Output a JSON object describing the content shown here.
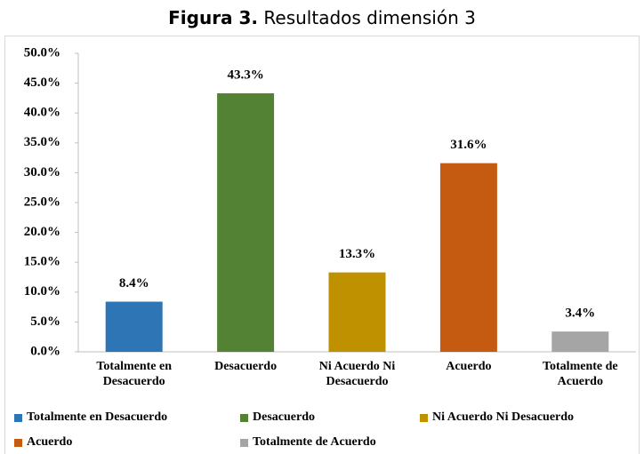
{
  "chart_data": {
    "type": "bar",
    "figure_label": "Figura 3.",
    "title": "Resultados dimensión 3",
    "categories": [
      "Totalmente en Desacuerdo",
      "Desacuerdo",
      "Ni Acuerdo Ni Desacuerdo",
      "Acuerdo",
      "Totalmente de Acuerdo"
    ],
    "values": [
      8.4,
      43.3,
      13.3,
      31.6,
      3.4
    ],
    "value_labels": [
      "8.4%",
      "43.3%",
      "13.3%",
      "31.6%",
      "3.4%"
    ],
    "colors": [
      "#2e75b6",
      "#548235",
      "#bf9000",
      "#c55a11",
      "#a5a5a5"
    ],
    "ylim": [
      0,
      50
    ],
    "yticks": [
      {
        "value": 0,
        "label": "0.0%"
      },
      {
        "value": 5,
        "label": "5.0%"
      },
      {
        "value": 10,
        "label": "10.0%"
      },
      {
        "value": 15,
        "label": "15.0%"
      },
      {
        "value": 20,
        "label": "20.0%"
      },
      {
        "value": 25,
        "label": "25.0%"
      },
      {
        "value": 30,
        "label": "30.0%"
      },
      {
        "value": 35,
        "label": "35.0%"
      },
      {
        "value": 40,
        "label": "40.0%"
      },
      {
        "value": 45,
        "label": "45.0%"
      },
      {
        "value": 50,
        "label": "50.0%"
      }
    ],
    "grid": false,
    "legend": "bottom"
  }
}
